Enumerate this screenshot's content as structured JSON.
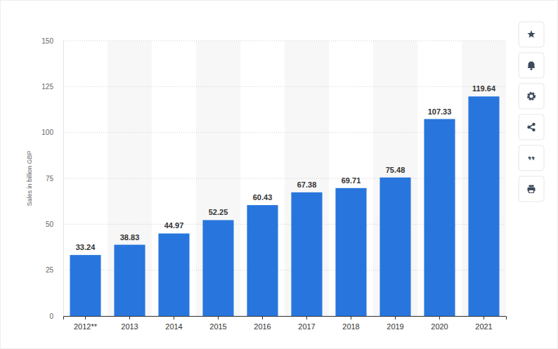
{
  "chart_data": {
    "type": "bar",
    "y_label": "Sales in billion GBP",
    "categories": [
      "2012**",
      "2013",
      "2014",
      "2015",
      "2016",
      "2017",
      "2018",
      "2019",
      "2020",
      "2021"
    ],
    "values": [
      33.24,
      38.83,
      44.97,
      52.25,
      60.43,
      67.38,
      69.71,
      75.48,
      107.33,
      119.64
    ],
    "color": "#2876dd",
    "ylim": [
      0,
      150
    ],
    "yticks": [
      0,
      25,
      50,
      75,
      100,
      125,
      150
    ],
    "grid": true,
    "data_labels": true
  }
}
